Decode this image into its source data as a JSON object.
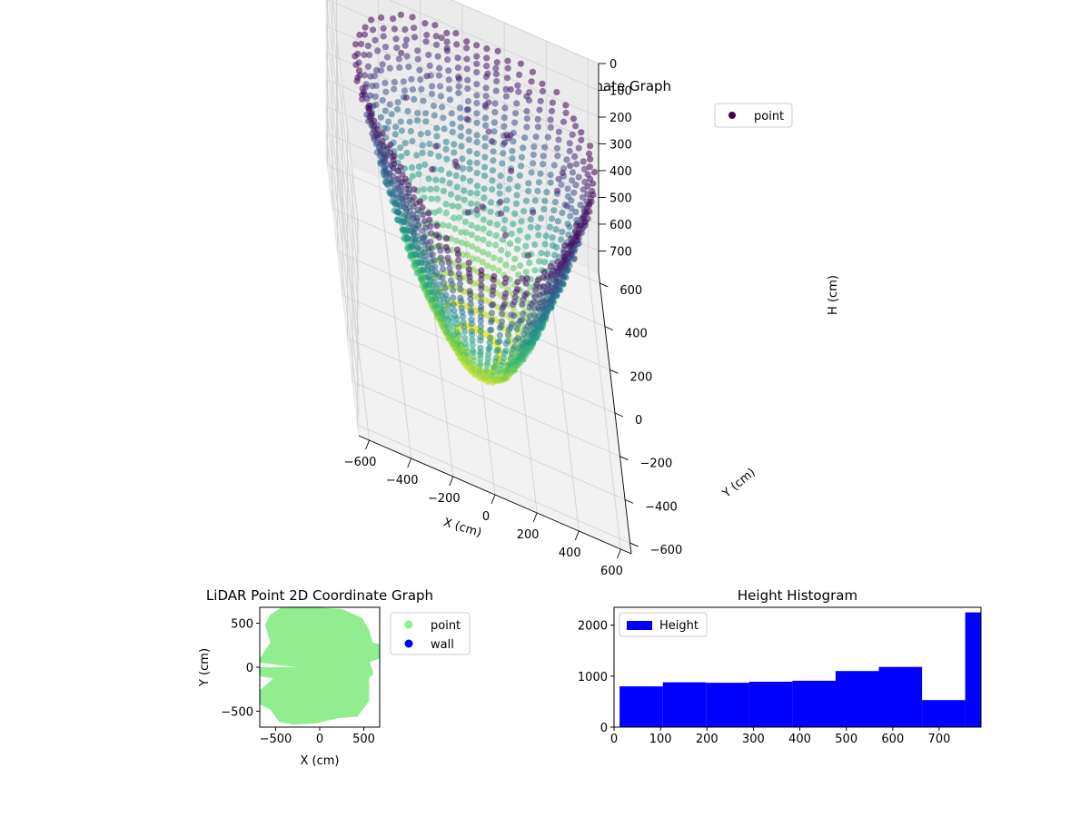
{
  "chart_data": [
    {
      "type": "scatter",
      "projection": "3d",
      "title": "LiDAR Point 3D Coordinate Graph",
      "xlabel": "X (cm)",
      "ylabel": "Y (cm)",
      "zlabel": "H (cm)",
      "xlim": [
        -650,
        650
      ],
      "ylim": [
        -650,
        650
      ],
      "zlim": [
        0,
        780
      ],
      "z_inverted": true,
      "x_ticks": [
        "−600",
        "−400",
        "−200",
        "0",
        "200",
        "400",
        "600"
      ],
      "y_ticks": [
        "−600",
        "−400",
        "−200",
        "0",
        "200",
        "400",
        "600"
      ],
      "z_ticks": [
        "0",
        "100",
        "200",
        "300",
        "400",
        "500",
        "600",
        "700"
      ],
      "colormap": "viridis",
      "legend": {
        "position": "top-right",
        "entries": [
          {
            "label": "point",
            "color": "#440154"
          }
        ]
      },
      "shape": "radial scan arcs around a room, points spanning roughly -650 to 650 cm in X and Y and 0 to 780 cm in height",
      "grid": true
    },
    {
      "type": "scatter",
      "title": "LiDAR Point 2D Coordinate Graph",
      "xlabel": "X (cm)",
      "ylabel": "Y (cm)",
      "xlim": [
        -680,
        680
      ],
      "ylim": [
        -680,
        680
      ],
      "x_ticks": [
        "−500",
        "0",
        "500"
      ],
      "y_ticks": [
        "−500",
        "0",
        "500"
      ],
      "legend": {
        "position": "outside-right",
        "entries": [
          {
            "label": "point",
            "color": "#90ee90"
          },
          {
            "label": "wall",
            "color": "#0000ff"
          }
        ]
      },
      "series": [
        {
          "name": "point",
          "color": "#90ee90"
        },
        {
          "name": "wall",
          "color": "#0000ff"
        }
      ],
      "grid": false
    },
    {
      "type": "bar",
      "subtype": "histogram",
      "title": "Height Histogram",
      "xlim": [
        0,
        790
      ],
      "ylim": [
        0,
        2350
      ],
      "x_ticks": [
        "0",
        "100",
        "200",
        "300",
        "400",
        "500",
        "600",
        "700"
      ],
      "y_ticks": [
        "0",
        "1000",
        "2000"
      ],
      "bin_edges": [
        12,
        105,
        198,
        291,
        384,
        477,
        570,
        663,
        756,
        790
      ],
      "values": [
        800,
        880,
        870,
        890,
        910,
        1100,
        1180,
        530,
        2250
      ],
      "color": "#0000ff",
      "legend": {
        "position": "top-left",
        "entries": [
          {
            "label": "Height",
            "color": "#0000ff"
          }
        ]
      },
      "grid": false
    }
  ]
}
